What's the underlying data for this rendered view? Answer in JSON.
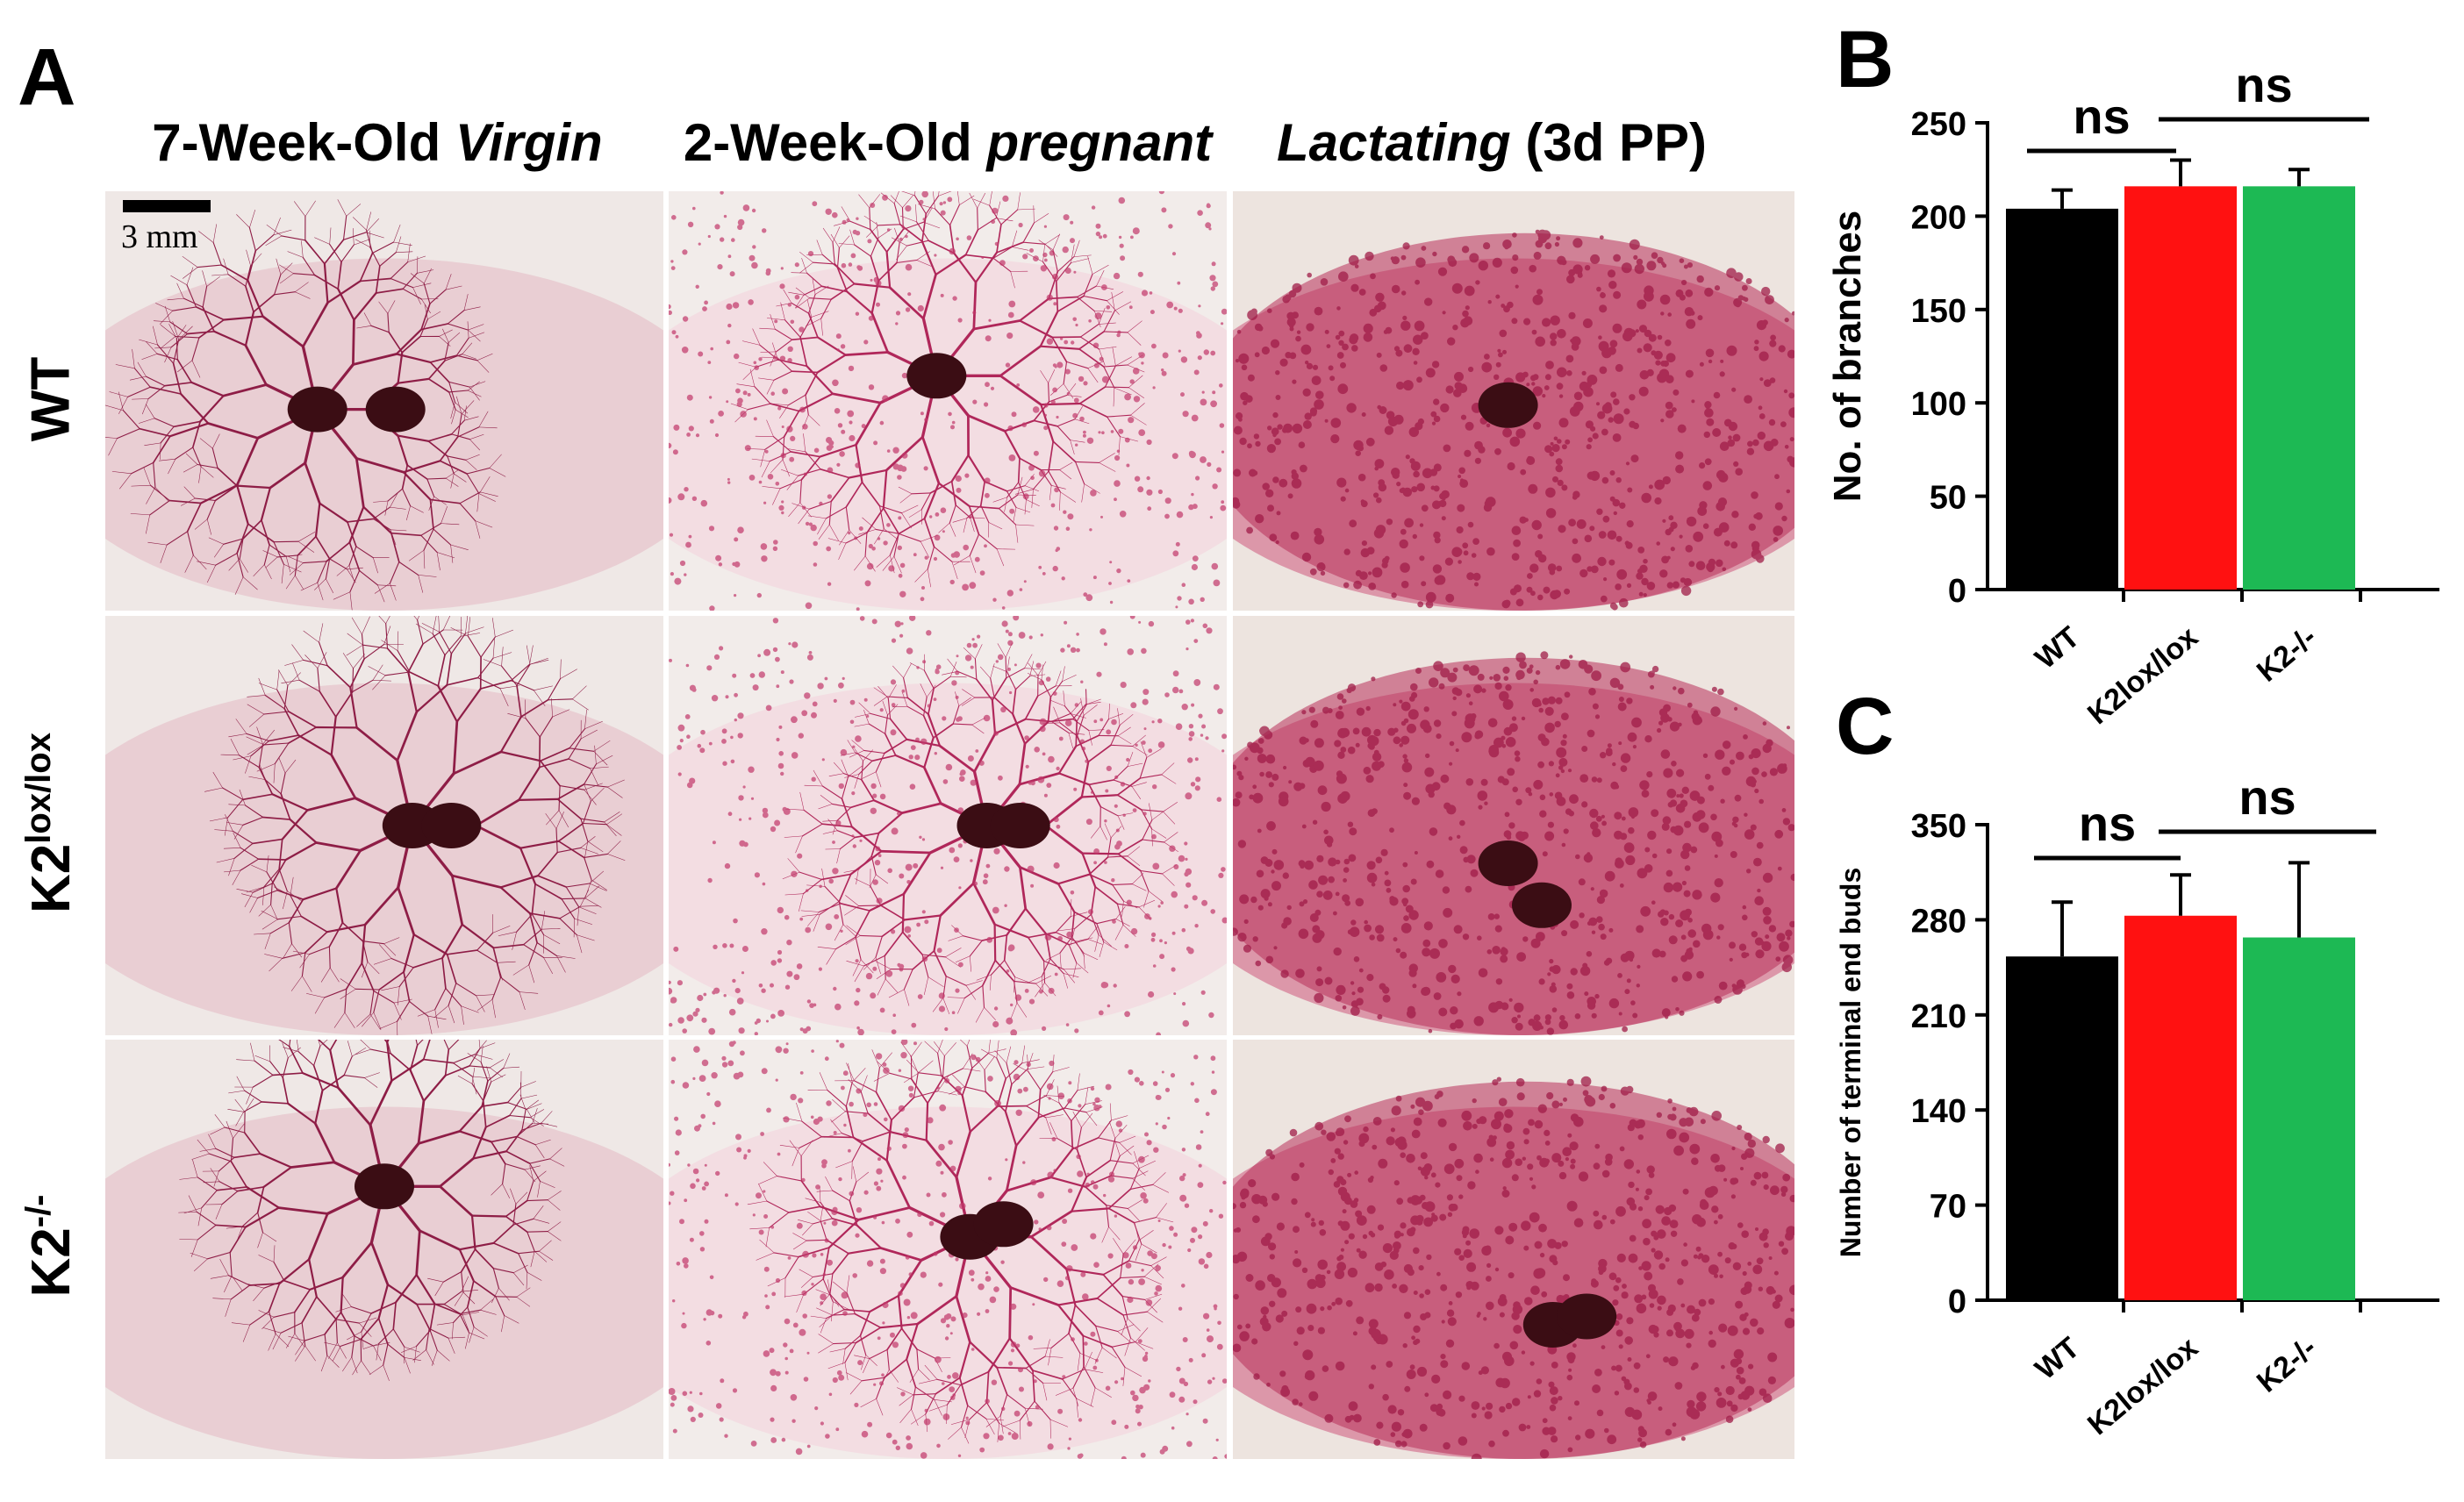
{
  "panel_labels": {
    "a": "A",
    "b": "B",
    "c": "C"
  },
  "columns": [
    {
      "prefix": "7-Week-Old",
      "italic": "Virgin",
      "suffix": ""
    },
    {
      "prefix": "2-Week-Old",
      "italic": "pregnant",
      "suffix": ""
    },
    {
      "prefix": "",
      "italic": "Lactating",
      "suffix": " (3d PP)"
    }
  ],
  "rows": [
    {
      "base": "WT",
      "sup": ""
    },
    {
      "base": "K2",
      "sup": "lox/lox"
    },
    {
      "base": "K2",
      "sup": "-/-"
    }
  ],
  "scale_bar_label": "3 mm",
  "colors": {
    "wt": "#000000",
    "k2lox": "#ff1111",
    "k2ko": "#1db954"
  },
  "chart_data": [
    {
      "type": "bar",
      "panel": "B",
      "categories": [
        "WT",
        "K2lox/lox",
        "K2-/-"
      ],
      "values": [
        204,
        216,
        216
      ],
      "errors": [
        10,
        14,
        9
      ],
      "ylabel": "No. of branches",
      "ylim": [
        0,
        250
      ],
      "yticks": [
        0,
        50,
        100,
        150,
        200,
        250
      ],
      "significance": [
        {
          "from": 0,
          "to": 1,
          "label": "ns"
        },
        {
          "from": 1,
          "to": 2,
          "label": "ns"
        }
      ]
    },
    {
      "type": "bar",
      "panel": "C",
      "categories": [
        "WT",
        "K2lox/lox",
        "K2-/-"
      ],
      "values": [
        253,
        283,
        267
      ],
      "errors": [
        40,
        30,
        55
      ],
      "ylabel": "Number of terminal end buds",
      "ylim": [
        0,
        350
      ],
      "yticks": [
        0,
        70,
        140,
        210,
        280,
        350
      ],
      "significance": [
        {
          "from": 0,
          "to": 1,
          "label": "ns"
        },
        {
          "from": 1,
          "to": 2,
          "label": "ns"
        }
      ]
    }
  ]
}
